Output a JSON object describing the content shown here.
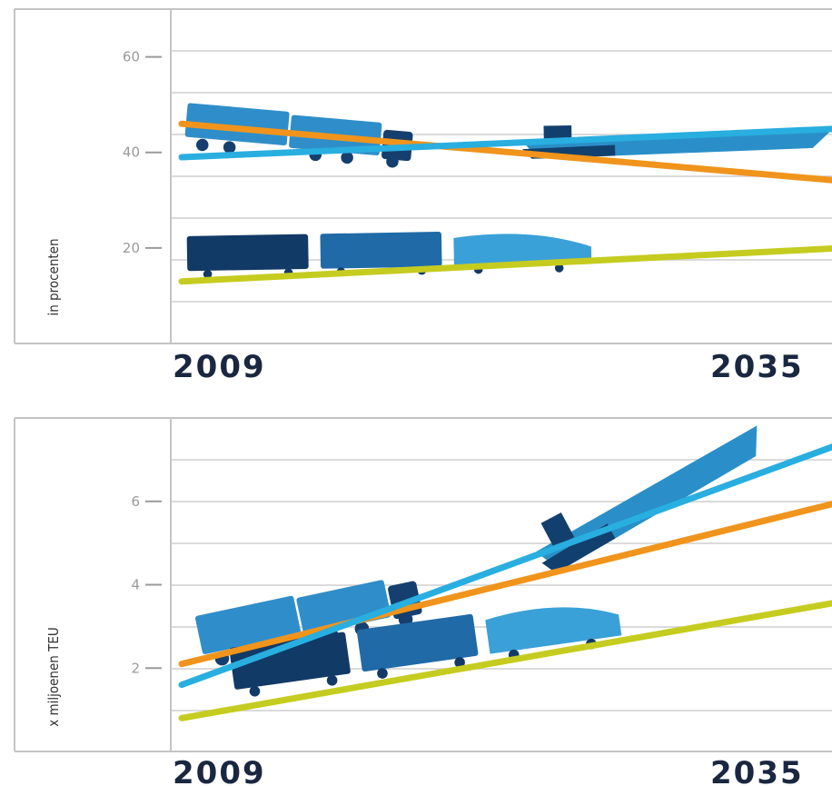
{
  "chart_data": [
    {
      "type": "line",
      "ylabel": "in procenten",
      "yticks": [
        20,
        40,
        60
      ],
      "ylim": [
        0,
        70
      ],
      "xlim": [
        2009,
        2035
      ],
      "x_tick_labels": [
        "2009",
        "2035"
      ],
      "grid": true,
      "series": [
        {
          "color": "#f0941c",
          "x": [
            2009,
            2035
          ],
          "values": [
            46,
            34
          ],
          "icon": "truck-icon"
        },
        {
          "color": "#29aee0",
          "x": [
            2009,
            2035
          ],
          "values": [
            39,
            45
          ],
          "icon": "ship-icon"
        },
        {
          "color": "#c5cc1f",
          "x": [
            2009,
            2035
          ],
          "values": [
            13,
            20
          ],
          "icon": "train-icon"
        }
      ]
    },
    {
      "type": "line",
      "ylabel": "x miljoenen TEU",
      "yticks": [
        2,
        4,
        6
      ],
      "ylim": [
        0,
        8
      ],
      "xlim": [
        2009,
        2035
      ],
      "x_tick_labels": [
        "2009",
        "2035"
      ],
      "grid": true,
      "series": [
        {
          "color": "#f0941c",
          "x": [
            2009,
            2035
          ],
          "values": [
            2.1,
            6.0
          ],
          "icon": "truck-icon"
        },
        {
          "color": "#29aee0",
          "x": [
            2009,
            2035
          ],
          "values": [
            1.6,
            7.4
          ],
          "icon": "ship-icon"
        },
        {
          "color": "#c5cc1f",
          "x": [
            2009,
            2035
          ],
          "values": [
            0.8,
            3.6
          ],
          "icon": "train-icon"
        }
      ]
    }
  ]
}
